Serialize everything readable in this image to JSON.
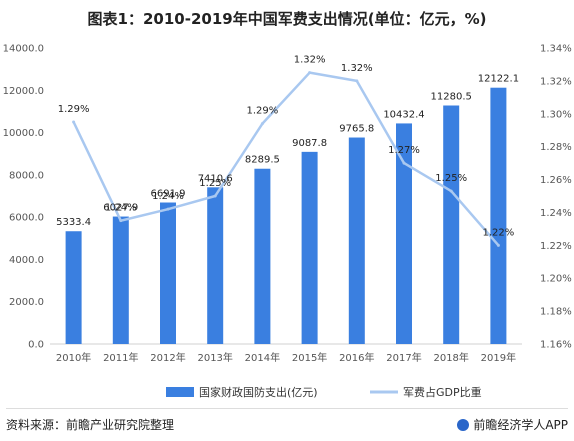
{
  "title": "图表1：2010-2019年中国军费支出情况(单位：亿元，%)",
  "source": "资料来源：前瞻产业研究院整理",
  "brand": "前瞻经济学人APP",
  "chart_data": {
    "type": "bar",
    "categories": [
      "2010年",
      "2011年",
      "2012年",
      "2013年",
      "2014年",
      "2015年",
      "2016年",
      "2017年",
      "2018年",
      "2019年"
    ],
    "series": [
      {
        "name": "国家财政国防支出(亿元)",
        "type": "bar",
        "axis": "left",
        "color": "#3a7fe0",
        "values": [
          5333.4,
          6027.9,
          6691.9,
          7410.6,
          8289.5,
          9087.8,
          9765.8,
          10432.4,
          11280.5,
          12122.1
        ],
        "labels": [
          "5333.4",
          "6027.9",
          "6691.9",
          "7410.6",
          "8289.5",
          "9087.8",
          "9765.8",
          "10432.4",
          "11280.5",
          "12122.1"
        ]
      },
      {
        "name": "军费占GDP比重",
        "type": "line",
        "axis": "right",
        "color": "#a9c8f0",
        "values": [
          1.295,
          1.235,
          1.242,
          1.25,
          1.294,
          1.325,
          1.32,
          1.27,
          1.253,
          1.22
        ],
        "labels": [
          "1.29%",
          "1.24%",
          "1.24%",
          "1.25%",
          "1.29%",
          "1.32%",
          "1.32%",
          "1.27%",
          "1.25%",
          "1.22%"
        ]
      }
    ],
    "y_left": {
      "min": 0,
      "max": 14000,
      "ticks": [
        0,
        2000,
        4000,
        6000,
        8000,
        10000,
        12000,
        14000
      ],
      "tick_labels": [
        "0.0",
        "2000.0",
        "4000.0",
        "6000.0",
        "8000.0",
        "10000.0",
        "12000.0",
        "14000.0"
      ]
    },
    "y_right": {
      "min": 1.16,
      "max": 1.34,
      "ticks": [
        1.16,
        1.18,
        1.2,
        1.22,
        1.24,
        1.26,
        1.28,
        1.3,
        1.32,
        1.34
      ],
      "tick_labels": [
        "1.16%",
        "1.18%",
        "1.20%",
        "1.22%",
        "1.24%",
        "1.26%",
        "1.28%",
        "1.30%",
        "1.32%",
        "1.34%"
      ]
    },
    "grid": false,
    "legend_position": "bottom"
  }
}
